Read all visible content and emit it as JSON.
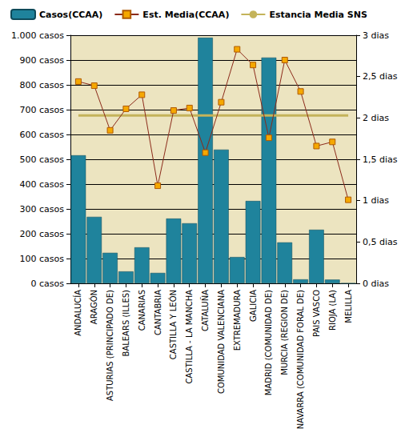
{
  "chart_data": {
    "type": "bar",
    "categories": [
      "ANDALUCÍA",
      "ARAGÓN",
      "ASTURIAS (PRINCIPADO DE)",
      "BALEARS (ILLES)",
      "CANARIAS",
      "CANTABRIA",
      "CASTILLA Y LEÓN",
      "CASTILLA - LA MANCHA",
      "CATALUÑA",
      "COMUNIDAD VALENCIANA",
      "EXTREMADURA",
      "GALICIA",
      "MADRID (COMUNIDAD DE)",
      "MURCIA (REGION DE)",
      "NAVARRA (COMUNIDAD FORAL DE)",
      "PAIS VASCO",
      "RIOJA (LA)",
      "MELILLA"
    ],
    "series": [
      {
        "name": "Casos(CCAA)",
        "type": "bar",
        "color": "#1f839c",
        "values": [
          516,
          268,
          123,
          48,
          145,
          42,
          261,
          242,
          990,
          539,
          106,
          332,
          910,
          165,
          16,
          216,
          15,
          0
        ]
      },
      {
        "name": "Est. Media(CCAA)",
        "type": "line",
        "axis": "y2",
        "color": "#8b2a1a",
        "marker": "square",
        "values": [
          2.44,
          2.39,
          1.85,
          2.11,
          2.28,
          1.18,
          2.09,
          2.12,
          1.58,
          2.19,
          2.83,
          2.64,
          1.76,
          2.7,
          2.32,
          1.66,
          1.71,
          1.01
        ]
      },
      {
        "name": "Estancia Media SNS",
        "type": "line",
        "axis": "y2",
        "color": "#c4b35a",
        "marker": "none",
        "values": [
          2.03,
          2.03,
          2.03,
          2.03,
          2.03,
          2.03,
          2.03,
          2.03,
          2.03,
          2.03,
          2.03,
          2.03,
          2.03,
          2.03,
          2.03,
          2.03,
          2.03,
          2.03
        ]
      }
    ],
    "ylim": [
      0,
      1000
    ],
    "yticks": [
      {
        "value": 0,
        "label": "0 casos"
      },
      {
        "value": 100,
        "label": "100 casos"
      },
      {
        "value": 200,
        "label": "200 casos"
      },
      {
        "value": 300,
        "label": "300 casos"
      },
      {
        "value": 400,
        "label": "400 casos"
      },
      {
        "value": 500,
        "label": "500 casos"
      },
      {
        "value": 600,
        "label": "600 casos"
      },
      {
        "value": 700,
        "label": "700 casos"
      },
      {
        "value": 800,
        "label": "800 casos"
      },
      {
        "value": 900,
        "label": "900 casos"
      },
      {
        "value": 1000,
        "label": "1.000 casos"
      }
    ],
    "y2lim": [
      0,
      3
    ],
    "y2ticks": [
      {
        "value": 0,
        "label": "0 dias"
      },
      {
        "value": 0.5,
        "label": "0,5 dias"
      },
      {
        "value": 1,
        "label": "1 dias"
      },
      {
        "value": 1.5,
        "label": "1,5 dias"
      },
      {
        "value": 2,
        "label": "2 dias"
      },
      {
        "value": 2.5,
        "label": "2,5 dias"
      },
      {
        "value": 3,
        "label": "3 dias"
      }
    ],
    "grid": true,
    "legend": "top-left"
  }
}
